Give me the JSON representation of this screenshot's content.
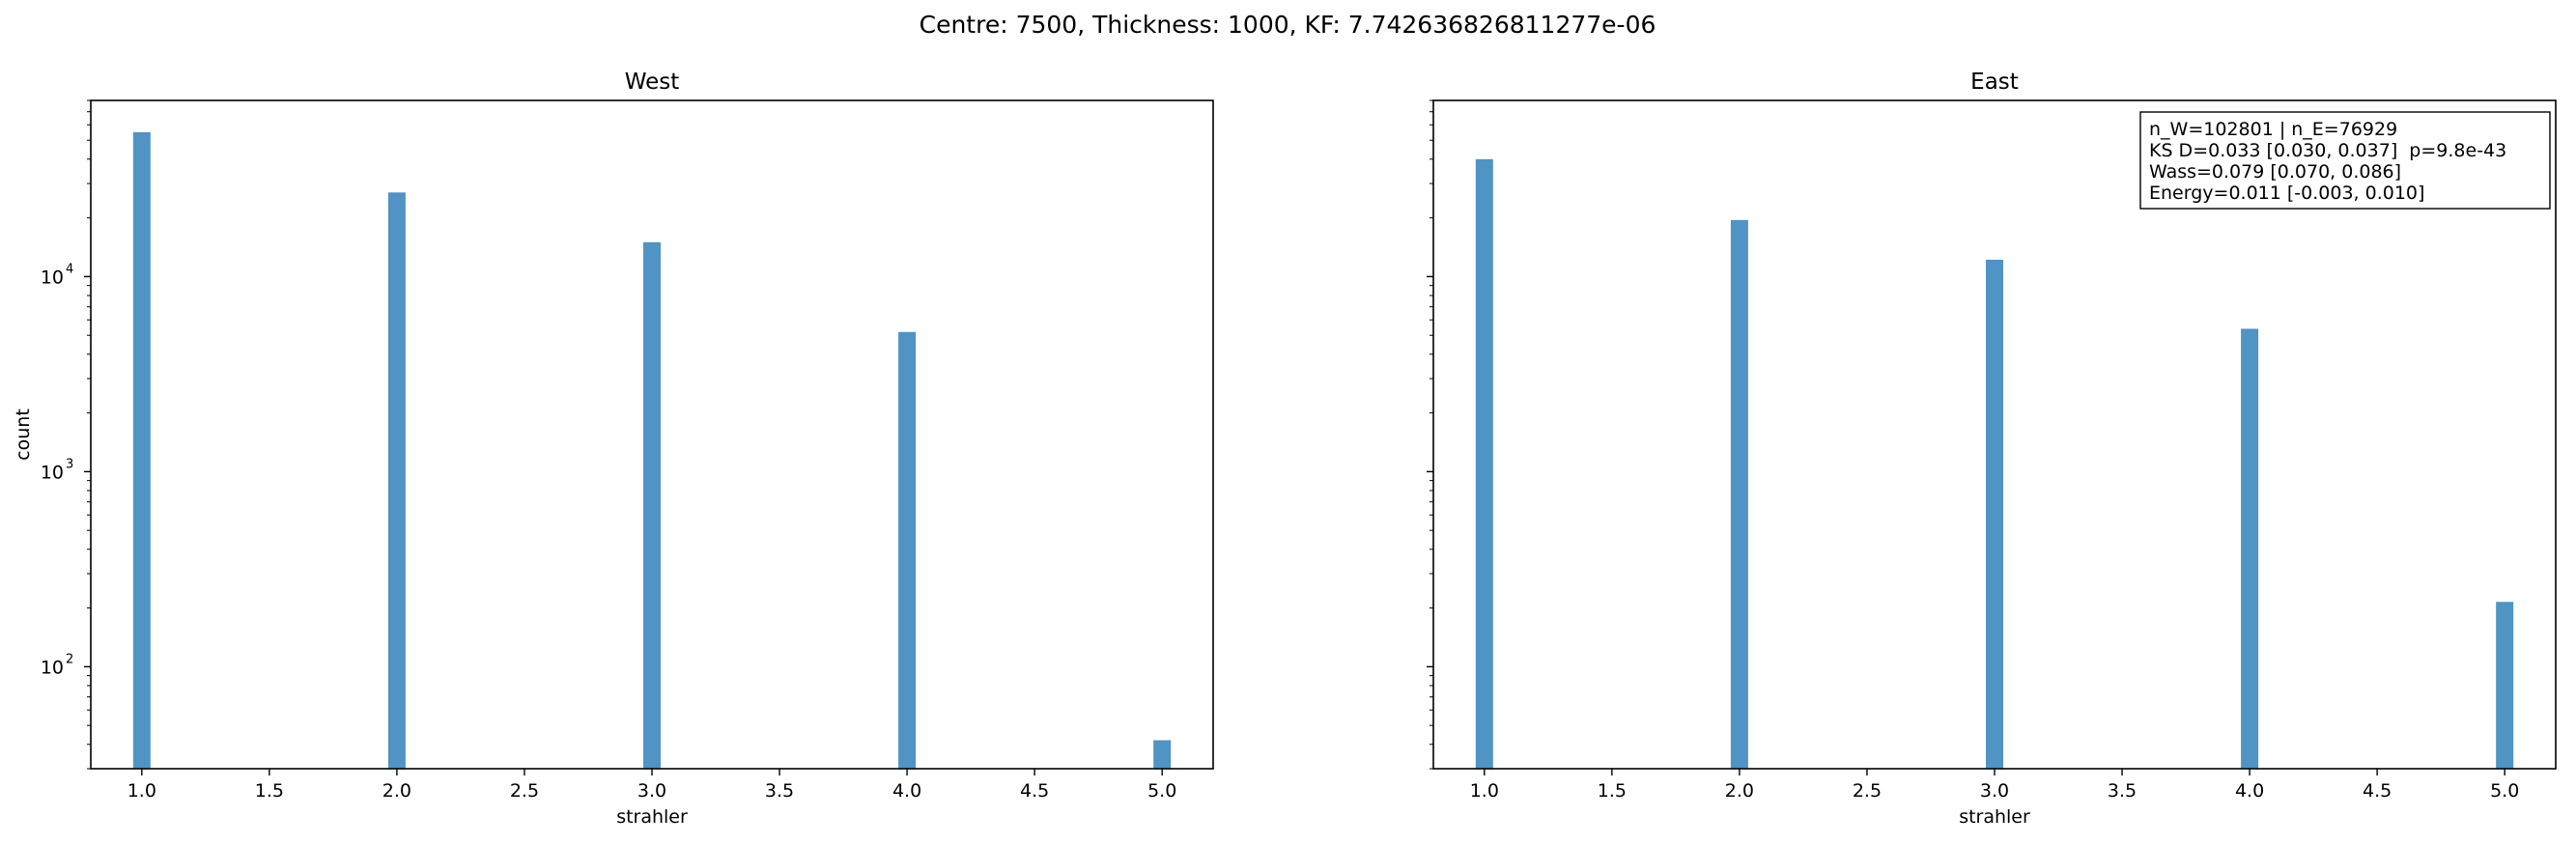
{
  "figure": {
    "suptitle": "Centre: 7500, Thickness: 1000, KF: 7.742636826811277e-06"
  },
  "colors": {
    "bar": "#4f94c4",
    "axis": "#000000",
    "background": "#ffffff"
  },
  "chart_data": [
    {
      "type": "bar",
      "title": "West",
      "xlabel": "strahler",
      "ylabel": "count",
      "yscale": "log",
      "xlim": [
        0.8,
        5.2
      ],
      "ylim": [
        30,
        80000
      ],
      "x_ticks": [
        1.0,
        1.5,
        2.0,
        2.5,
        3.0,
        3.5,
        4.0,
        4.5,
        5.0
      ],
      "x_tick_labels": [
        "1.0",
        "1.5",
        "2.0",
        "2.5",
        "3.0",
        "3.5",
        "4.0",
        "4.5",
        "5.0"
      ],
      "y_ticks": [
        100,
        1000,
        10000
      ],
      "y_tick_labels": [
        "10",
        "10",
        "10"
      ],
      "y_tick_exponents": [
        "2",
        "3",
        "4"
      ],
      "x": [
        1,
        2,
        3,
        4,
        5
      ],
      "values": [
        55000,
        27000,
        15000,
        5200,
        42
      ],
      "grid": false
    },
    {
      "type": "bar",
      "title": "East",
      "xlabel": "strahler",
      "ylabel": "",
      "yscale": "log",
      "xlim": [
        0.8,
        5.2
      ],
      "ylim": [
        30,
        80000
      ],
      "x_ticks": [
        1.0,
        1.5,
        2.0,
        2.5,
        3.0,
        3.5,
        4.0,
        4.5,
        5.0
      ],
      "x_tick_labels": [
        "1.0",
        "1.5",
        "2.0",
        "2.5",
        "3.0",
        "3.5",
        "4.0",
        "4.5",
        "5.0"
      ],
      "y_ticks": [
        100,
        1000,
        10000
      ],
      "y_tick_labels": [],
      "y_tick_exponents": [],
      "x": [
        1,
        2,
        3,
        4,
        5
      ],
      "values": [
        40000,
        19500,
        12200,
        5400,
        215
      ],
      "annotation": [
        "n_W=102801 | n_E=76929",
        "KS D=0.033 [0.030, 0.037]  p=9.8e-43",
        "Wass=0.079 [0.070, 0.086]",
        "Energy=0.011 [-0.003, 0.010]"
      ],
      "annotation_position": "top-right",
      "grid": false
    }
  ]
}
